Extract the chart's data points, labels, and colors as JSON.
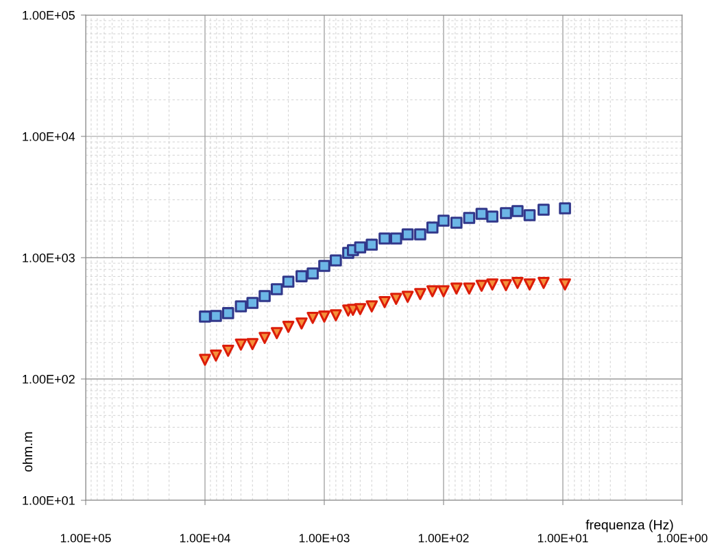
{
  "chart_data": {
    "type": "scatter",
    "xlabel": "frequenza (Hz)",
    "ylabel": "ohm.m",
    "x": [
      10000,
      8100,
      6400,
      5000,
      4000,
      3160,
      2500,
      2000,
      1550,
      1250,
      1000,
      800,
      630,
      575,
      500,
      400,
      312,
      250,
      200,
      157,
      124,
      100,
      78,
      61,
      48,
      39,
      30,
      24,
      19,
      14.5,
      9.6
    ],
    "series": [
      {
        "color": "#6cb6e6",
        "marker": "square",
        "values": [
          327,
          331,
          349,
          397,
          424,
          483,
          550,
          634,
          703,
          741,
          855,
          949,
          1096,
          1154,
          1216,
          1281,
          1439,
          1439,
          1556,
          1556,
          1773,
          2019,
          1942,
          2128,
          2301,
          2183,
          2328,
          2421,
          2240,
          2485,
          2551
        ]
      },
      {
        "color": "#f4903a",
        "marker": "triangle",
        "values": [
          144,
          156,
          171,
          192,
          194,
          218,
          239,
          269,
          287,
          319,
          327,
          335,
          367,
          372,
          377,
          397,
          430,
          458,
          476,
          502,
          529,
          529,
          557,
          557,
          587,
          602,
          594,
          619,
          602,
          619,
          602
        ]
      }
    ],
    "log": "xy",
    "xlim": [
      100000,
      1
    ],
    "ylim": [
      10,
      100000
    ],
    "xticks": [
      {
        "value": 100000,
        "label": "1.00E+05"
      },
      {
        "value": 10000,
        "label": "1.00E+04"
      },
      {
        "value": 1000,
        "label": "1.00E+03"
      },
      {
        "value": 100,
        "label": "1.00E+02"
      },
      {
        "value": 10,
        "label": "1.00E+01"
      },
      {
        "value": 1,
        "label": "1.00E+00"
      }
    ],
    "yticks": [
      {
        "value": 10,
        "label": "1.00E+01"
      },
      {
        "value": 100,
        "label": "1.00E+02"
      },
      {
        "value": 1000,
        "label": "1.00E+03"
      },
      {
        "value": 10000,
        "label": "1.00E+04"
      },
      {
        "value": 100000,
        "label": "1.00E+05"
      }
    ],
    "grid": true
  }
}
